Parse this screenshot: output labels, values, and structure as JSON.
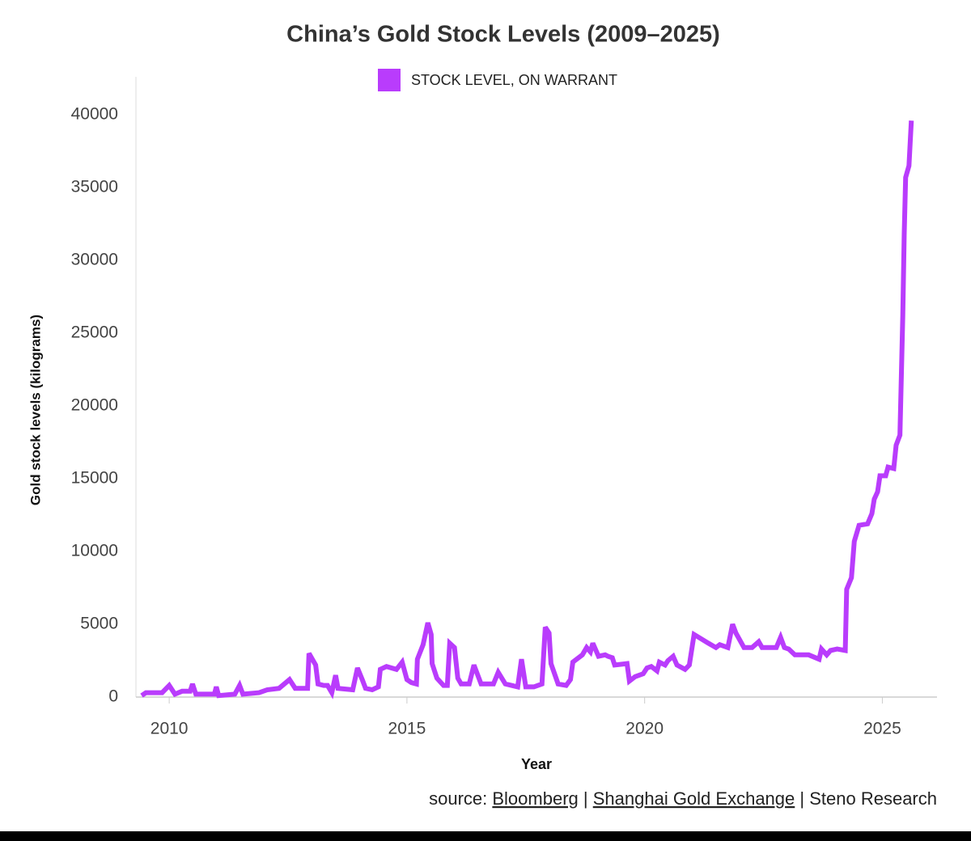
{
  "chart_data": {
    "type": "line",
    "title": "China’s Gold Stock Levels (2009–2025)",
    "x_label": "Year",
    "y_label": "Gold stock levels (kilograms)",
    "legend": "top",
    "source": {
      "prefix": "source:",
      "links": [
        "Bloomberg",
        "Shanghai Gold Exchange"
      ],
      "separator": "|",
      "suffix": "Steno Research"
    },
    "xlim": [
      2009.3,
      2026.15
    ],
    "xticks": [
      2010,
      2015,
      2020,
      2025
    ],
    "ylim": [
      0,
      40000
    ],
    "yticks": [
      0,
      5000,
      10000,
      15000,
      20000,
      25000,
      30000,
      35000,
      40000
    ],
    "grid": false,
    "x": [
      2009.42,
      2009.51,
      2009.85,
      2010.0,
      2010.12,
      2010.27,
      2010.44,
      2010.49,
      2010.56,
      2010.95,
      2010.99,
      2011.04,
      2011.38,
      2011.48,
      2011.55,
      2011.89,
      2012.06,
      2012.31,
      2012.53,
      2012.65,
      2012.91,
      2012.94,
      2013.08,
      2013.13,
      2013.25,
      2013.33,
      2013.42,
      2013.5,
      2013.55,
      2013.86,
      2013.96,
      2014.06,
      2014.13,
      2014.27,
      2014.4,
      2014.44,
      2014.57,
      2014.78,
      2014.9,
      2015.0,
      2015.09,
      2015.2,
      2015.22,
      2015.34,
      2015.44,
      2015.51,
      2015.53,
      2015.63,
      2015.77,
      2015.85,
      2015.9,
      2016.0,
      2016.07,
      2016.14,
      2016.31,
      2016.41,
      2016.56,
      2016.82,
      2016.92,
      2017.07,
      2017.33,
      2017.41,
      2017.5,
      2017.67,
      2017.84,
      2017.91,
      2017.99,
      2018.03,
      2018.18,
      2018.35,
      2018.44,
      2018.49,
      2018.69,
      2018.78,
      2018.86,
      2018.91,
      2019.03,
      2019.17,
      2019.23,
      2019.32,
      2019.37,
      2019.63,
      2019.68,
      2019.8,
      2019.97,
      2020.05,
      2020.14,
      2020.26,
      2020.31,
      2020.43,
      2020.49,
      2020.6,
      2020.68,
      2020.85,
      2020.94,
      2021.04,
      2021.24,
      2021.34,
      2021.5,
      2021.58,
      2021.75,
      2021.85,
      2021.92,
      2022.09,
      2022.26,
      2022.4,
      2022.47,
      2022.77,
      2022.86,
      2022.94,
      2023.03,
      2023.16,
      2023.45,
      2023.67,
      2023.72,
      2023.83,
      2023.91,
      2024.05,
      2024.22,
      2024.25,
      2024.35,
      2024.41,
      2024.51,
      2024.69,
      2024.78,
      2024.83,
      2024.9,
      2024.95,
      2025.07,
      2025.12,
      2025.24,
      2025.29,
      2025.37,
      2025.43,
      2025.46,
      2025.49,
      2025.56,
      2025.61
    ],
    "series": [
      {
        "name": "STOCK LEVEL, ON WARRANT",
        "color": "#b93cfc",
        "values": [
          100,
          300,
          300,
          800,
          200,
          400,
          400,
          900,
          200,
          200,
          700,
          100,
          200,
          800,
          200,
          300,
          500,
          600,
          1200,
          600,
          600,
          3000,
          2200,
          900,
          800,
          800,
          300,
          1500,
          600,
          500,
          2000,
          1200,
          600,
          500,
          700,
          1900,
          2100,
          1900,
          2400,
          1200,
          1000,
          900,
          2600,
          3600,
          5100,
          4300,
          2300,
          1300,
          800,
          800,
          3700,
          3400,
          1300,
          900,
          900,
          2200,
          900,
          900,
          1700,
          900,
          700,
          2600,
          700,
          700,
          900,
          4800,
          4400,
          2300,
          900,
          800,
          1200,
          2400,
          2900,
          3400,
          3100,
          3700,
          2800,
          2900,
          2800,
          2700,
          2200,
          2300,
          1100,
          1400,
          1600,
          2000,
          2100,
          1800,
          2400,
          2200,
          2500,
          2800,
          2200,
          1900,
          2200,
          4300,
          3900,
          3700,
          3400,
          3600,
          3400,
          5000,
          4400,
          3400,
          3400,
          3800,
          3400,
          3400,
          4100,
          3400,
          3300,
          2900,
          2900,
          2600,
          3300,
          2900,
          3200,
          3300,
          3200,
          7400,
          8200,
          10700,
          11800,
          11900,
          12600,
          13600,
          14100,
          15200,
          15200,
          15800,
          15700,
          17300,
          18000,
          26200,
          31800,
          35700,
          36500,
          39600
        ]
      }
    ]
  }
}
